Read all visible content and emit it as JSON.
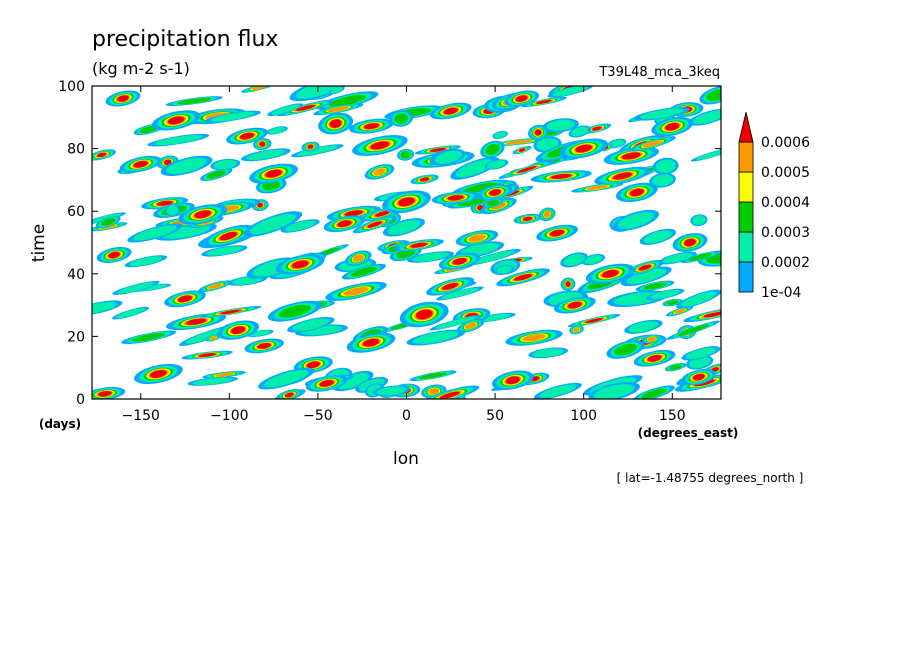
{
  "chart_data": {
    "type": "heatmap",
    "title": "precipitation flux",
    "units": "(kg m-2 s-1)",
    "experiment": "T39L48_mca_3keq",
    "xlabel": "lon",
    "x_units": "(degrees_east)",
    "ylabel": "time",
    "y_units": "(days)",
    "annotation": "[ lat=-1.48755 degrees_north ]",
    "xlim": [
      -177.5,
      177.5
    ],
    "ylim": [
      0,
      100
    ],
    "x_ticks": [
      -150,
      -100,
      -50,
      0,
      50,
      100,
      150
    ],
    "x_tick_labels": [
      "−150",
      "−100",
      "−50",
      "0",
      "50",
      "100",
      "150"
    ],
    "y_ticks": [
      0,
      20,
      40,
      60,
      80,
      100
    ],
    "y_tick_labels": [
      "0",
      "20",
      "40",
      "60",
      "80",
      "100"
    ],
    "legend_placement": "right",
    "color_levels": [
      {
        "min": 0.0001,
        "max": 0.0002,
        "color": "#00aaff"
      },
      {
        "min": 0.0002,
        "max": 0.0003,
        "color": "#00eeaa"
      },
      {
        "min": 0.0003,
        "max": 0.0004,
        "color": "#00cc00"
      },
      {
        "min": 0.0004,
        "max": 0.0005,
        "color": "#ffff00"
      },
      {
        "min": 0.0005,
        "max": 0.0006,
        "color": "#ff9900"
      },
      {
        "min": 0.0006,
        "max": null,
        "color": "#ee0000"
      }
    ],
    "colorbar_labels": [
      "1e-04",
      "0.0002",
      "0.0003",
      "0.0004",
      "0.0005",
      "0.0006"
    ],
    "field_approx": {
      "description_note": "",
      "blobs": [
        {
          "lon": -160,
          "time": 96,
          "w": 10,
          "h": 2.0,
          "v": 0.0007
        },
        {
          "lon": -130,
          "time": 89,
          "w": 14,
          "h": 2.5,
          "v": 0.0007
        },
        {
          "lon": -90,
          "time": 84,
          "w": 12,
          "h": 2.0,
          "v": 0.0007
        },
        {
          "lon": -40,
          "time": 88,
          "w": 10,
          "h": 3.0,
          "v": 0.0007
        },
        {
          "lon": -15,
          "time": 81,
          "w": 16,
          "h": 2.5,
          "v": 0.0007
        },
        {
          "lon": 25,
          "time": 92,
          "w": 12,
          "h": 2.0,
          "v": 0.0007
        },
        {
          "lon": 65,
          "time": 96,
          "w": 10,
          "h": 2.0,
          "v": 0.0007
        },
        {
          "lon": 100,
          "time": 80,
          "w": 14,
          "h": 2.5,
          "v": 0.0007
        },
        {
          "lon": 150,
          "time": 87,
          "w": 12,
          "h": 2.5,
          "v": 0.0007
        },
        {
          "lon": -150,
          "time": 75,
          "w": 12,
          "h": 2.0,
          "v": 0.0007
        },
        {
          "lon": -75,
          "time": 72,
          "w": 14,
          "h": 2.5,
          "v": 0.0007
        },
        {
          "lon": 0,
          "time": 63,
          "w": 14,
          "h": 3.0,
          "v": 0.0008
        },
        {
          "lon": 50,
          "time": 66,
          "w": 10,
          "h": 2.0,
          "v": 0.0007
        },
        {
          "lon": 130,
          "time": 66,
          "w": 12,
          "h": 2.5,
          "v": 0.0007
        },
        {
          "lon": -115,
          "time": 59,
          "w": 14,
          "h": 2.5,
          "v": 0.0007
        },
        {
          "lon": -35,
          "time": 56,
          "w": 12,
          "h": 2.0,
          "v": 0.0007
        },
        {
          "lon": 85,
          "time": 53,
          "w": 12,
          "h": 2.0,
          "v": 0.0007
        },
        {
          "lon": 160,
          "time": 50,
          "w": 10,
          "h": 2.5,
          "v": 0.0007
        },
        {
          "lon": -165,
          "time": 46,
          "w": 10,
          "h": 2.0,
          "v": 0.0007
        },
        {
          "lon": -60,
          "time": 43,
          "w": 14,
          "h": 2.5,
          "v": 0.0007
        },
        {
          "lon": 30,
          "time": 44,
          "w": 12,
          "h": 2.0,
          "v": 0.0007
        },
        {
          "lon": 115,
          "time": 40,
          "w": 14,
          "h": 2.5,
          "v": 0.0007
        },
        {
          "lon": -125,
          "time": 32,
          "w": 12,
          "h": 2.0,
          "v": 0.0007
        },
        {
          "lon": 10,
          "time": 27,
          "w": 14,
          "h": 3.5,
          "v": 0.0008
        },
        {
          "lon": 95,
          "time": 30,
          "w": 12,
          "h": 2.0,
          "v": 0.0007
        },
        {
          "lon": -95,
          "time": 22,
          "w": 12,
          "h": 2.5,
          "v": 0.0007
        },
        {
          "lon": -20,
          "time": 18,
          "w": 14,
          "h": 2.5,
          "v": 0.0007
        },
        {
          "lon": 140,
          "time": 13,
          "w": 12,
          "h": 2.0,
          "v": 0.0007
        },
        {
          "lon": -140,
          "time": 8,
          "w": 14,
          "h": 2.5,
          "v": 0.0007
        },
        {
          "lon": -45,
          "time": 5,
          "w": 12,
          "h": 2.0,
          "v": 0.0007
        },
        {
          "lon": 60,
          "time": 6,
          "w": 12,
          "h": 2.5,
          "v": 0.0007
        },
        {
          "lon": 165,
          "time": 7,
          "w": 10,
          "h": 2.0,
          "v": 0.0007
        }
      ]
    }
  }
}
